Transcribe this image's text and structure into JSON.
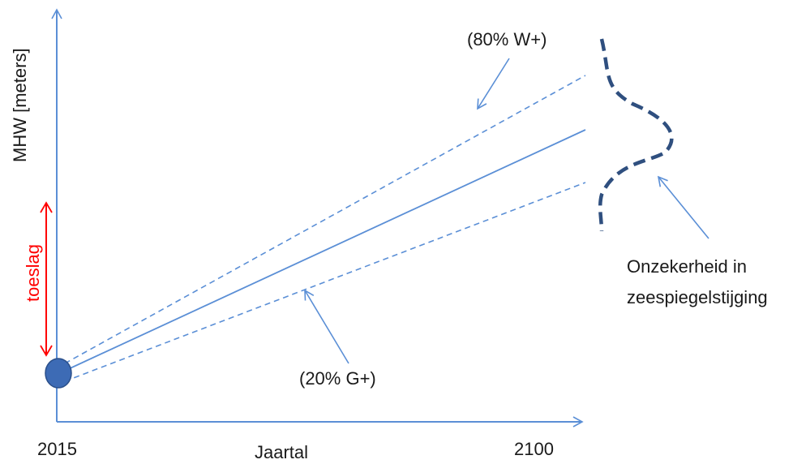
{
  "axes": {
    "ylabel": "MHW [meters]",
    "xlabel": "Jaartal",
    "x_start": "2015",
    "x_end": "2100"
  },
  "toeslag": {
    "label": "toeslag",
    "color": "#ff0000"
  },
  "annotations": {
    "upper": "(80% W+)",
    "lower": "(20% G+)",
    "uncertainty_line1": "Onzekerheid in",
    "uncertainty_line2": "zeespiegelstijging"
  },
  "colors": {
    "axis": "#5b8fd6",
    "lines": "#5b8fd6",
    "point": "#3d6bb5",
    "distribution": "#2f4f7f"
  }
}
